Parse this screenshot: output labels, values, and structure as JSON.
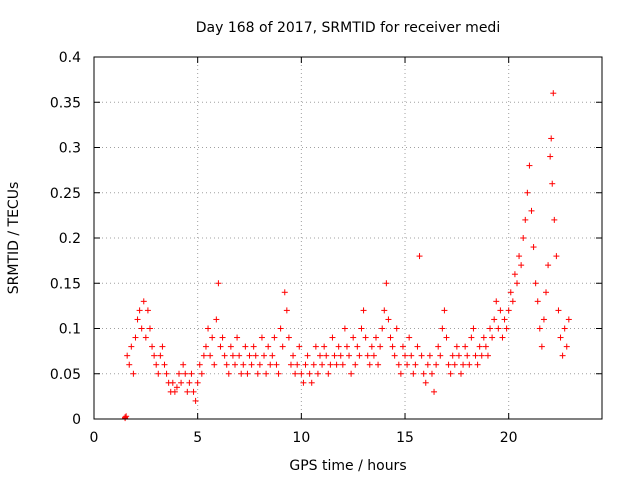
{
  "chart_data": {
    "type": "scatter",
    "title": "Day 168 of 2017, SRMTID for receiver medi",
    "xlabel": "GPS time / hours",
    "ylabel": "SRMTID / TECUs",
    "xlim": [
      0,
      24.5
    ],
    "ylim": [
      0,
      0.4
    ],
    "grid": true,
    "marker": "+",
    "color": "#ff0000",
    "x_ticks": [
      0,
      5,
      10,
      15,
      20
    ],
    "y_ticks": [
      0,
      0.05,
      0.1,
      0.15,
      0.2,
      0.25,
      0.3,
      0.35,
      0.4
    ],
    "x_tick_labels": [
      "0",
      "5",
      "10",
      "15",
      "20"
    ],
    "y_tick_labels": [
      "0",
      "0.05",
      "0.1",
      "0.15",
      "0.2",
      "0.25",
      "0.3",
      "0.35",
      "0.4"
    ],
    "series": [
      {
        "name": "SRMTID",
        "points": [
          [
            1.5,
            0.001
          ],
          [
            1.5,
            0.002
          ],
          [
            1.55,
            0.003
          ],
          [
            1.6,
            0.07
          ],
          [
            1.7,
            0.06
          ],
          [
            1.8,
            0.08
          ],
          [
            1.9,
            0.05
          ],
          [
            2.0,
            0.09
          ],
          [
            2.1,
            0.11
          ],
          [
            2.2,
            0.12
          ],
          [
            2.3,
            0.1
          ],
          [
            2.4,
            0.13
          ],
          [
            2.5,
            0.09
          ],
          [
            2.6,
            0.12
          ],
          [
            2.7,
            0.1
          ],
          [
            2.8,
            0.08
          ],
          [
            2.9,
            0.07
          ],
          [
            3.0,
            0.06
          ],
          [
            3.1,
            0.05
          ],
          [
            3.2,
            0.07
          ],
          [
            3.3,
            0.08
          ],
          [
            3.4,
            0.06
          ],
          [
            3.5,
            0.05
          ],
          [
            3.6,
            0.04
          ],
          [
            3.7,
            0.03
          ],
          [
            3.8,
            0.04
          ],
          [
            3.9,
            0.03
          ],
          [
            4.0,
            0.035
          ],
          [
            4.1,
            0.05
          ],
          [
            4.2,
            0.04
          ],
          [
            4.3,
            0.06
          ],
          [
            4.4,
            0.05
          ],
          [
            4.5,
            0.03
          ],
          [
            4.6,
            0.04
          ],
          [
            4.7,
            0.05
          ],
          [
            4.8,
            0.03
          ],
          [
            4.9,
            0.02
          ],
          [
            5.0,
            0.04
          ],
          [
            5.1,
            0.06
          ],
          [
            5.2,
            0.05
          ],
          [
            5.3,
            0.07
          ],
          [
            5.4,
            0.08
          ],
          [
            5.5,
            0.1
          ],
          [
            5.6,
            0.07
          ],
          [
            5.7,
            0.09
          ],
          [
            5.8,
            0.06
          ],
          [
            5.9,
            0.11
          ],
          [
            6.0,
            0.15
          ],
          [
            6.1,
            0.08
          ],
          [
            6.2,
            0.09
          ],
          [
            6.3,
            0.07
          ],
          [
            6.4,
            0.06
          ],
          [
            6.5,
            0.05
          ],
          [
            6.6,
            0.08
          ],
          [
            6.7,
            0.07
          ],
          [
            6.8,
            0.06
          ],
          [
            6.9,
            0.09
          ],
          [
            7.0,
            0.07
          ],
          [
            7.1,
            0.05
          ],
          [
            7.2,
            0.06
          ],
          [
            7.3,
            0.08
          ],
          [
            7.4,
            0.05
          ],
          [
            7.5,
            0.07
          ],
          [
            7.6,
            0.06
          ],
          [
            7.7,
            0.08
          ],
          [
            7.8,
            0.07
          ],
          [
            7.9,
            0.05
          ],
          [
            8.0,
            0.06
          ],
          [
            8.1,
            0.09
          ],
          [
            8.2,
            0.07
          ],
          [
            8.3,
            0.05
          ],
          [
            8.4,
            0.08
          ],
          [
            8.5,
            0.06
          ],
          [
            8.6,
            0.07
          ],
          [
            8.7,
            0.09
          ],
          [
            8.8,
            0.06
          ],
          [
            8.9,
            0.05
          ],
          [
            9.0,
            0.1
          ],
          [
            9.1,
            0.08
          ],
          [
            9.2,
            0.14
          ],
          [
            9.3,
            0.12
          ],
          [
            9.4,
            0.09
          ],
          [
            9.5,
            0.06
          ],
          [
            9.6,
            0.07
          ],
          [
            9.7,
            0.05
          ],
          [
            9.8,
            0.06
          ],
          [
            9.9,
            0.08
          ],
          [
            10.0,
            0.05
          ],
          [
            10.1,
            0.04
          ],
          [
            10.2,
            0.06
          ],
          [
            10.3,
            0.07
          ],
          [
            10.4,
            0.05
          ],
          [
            10.5,
            0.04
          ],
          [
            10.6,
            0.06
          ],
          [
            10.7,
            0.08
          ],
          [
            10.8,
            0.05
          ],
          [
            10.9,
            0.07
          ],
          [
            11.0,
            0.06
          ],
          [
            11.1,
            0.08
          ],
          [
            11.2,
            0.07
          ],
          [
            11.3,
            0.05
          ],
          [
            11.4,
            0.06
          ],
          [
            11.5,
            0.09
          ],
          [
            11.6,
            0.07
          ],
          [
            11.7,
            0.06
          ],
          [
            11.8,
            0.08
          ],
          [
            11.9,
            0.07
          ],
          [
            12.0,
            0.06
          ],
          [
            12.1,
            0.1
          ],
          [
            12.2,
            0.08
          ],
          [
            12.3,
            0.07
          ],
          [
            12.4,
            0.05
          ],
          [
            12.5,
            0.09
          ],
          [
            12.6,
            0.06
          ],
          [
            12.7,
            0.08
          ],
          [
            12.8,
            0.07
          ],
          [
            12.9,
            0.1
          ],
          [
            13.0,
            0.12
          ],
          [
            13.1,
            0.09
          ],
          [
            13.2,
            0.07
          ],
          [
            13.3,
            0.06
          ],
          [
            13.4,
            0.08
          ],
          [
            13.5,
            0.07
          ],
          [
            13.6,
            0.09
          ],
          [
            13.7,
            0.06
          ],
          [
            13.8,
            0.08
          ],
          [
            13.9,
            0.1
          ],
          [
            14.0,
            0.12
          ],
          [
            14.1,
            0.15
          ],
          [
            14.2,
            0.11
          ],
          [
            14.3,
            0.09
          ],
          [
            14.4,
            0.08
          ],
          [
            14.5,
            0.07
          ],
          [
            14.6,
            0.1
          ],
          [
            14.7,
            0.06
          ],
          [
            14.8,
            0.05
          ],
          [
            14.9,
            0.08
          ],
          [
            15.0,
            0.07
          ],
          [
            15.1,
            0.06
          ],
          [
            15.2,
            0.09
          ],
          [
            15.3,
            0.07
          ],
          [
            15.4,
            0.05
          ],
          [
            15.5,
            0.06
          ],
          [
            15.6,
            0.08
          ],
          [
            15.7,
            0.18
          ],
          [
            15.8,
            0.07
          ],
          [
            15.9,
            0.05
          ],
          [
            16.0,
            0.04
          ],
          [
            16.1,
            0.06
          ],
          [
            16.2,
            0.07
          ],
          [
            16.3,
            0.05
          ],
          [
            16.4,
            0.03
          ],
          [
            16.5,
            0.06
          ],
          [
            16.6,
            0.08
          ],
          [
            16.7,
            0.07
          ],
          [
            16.8,
            0.1
          ],
          [
            16.9,
            0.12
          ],
          [
            17.0,
            0.09
          ],
          [
            17.1,
            0.06
          ],
          [
            17.2,
            0.05
          ],
          [
            17.3,
            0.07
          ],
          [
            17.4,
            0.06
          ],
          [
            17.5,
            0.08
          ],
          [
            17.6,
            0.07
          ],
          [
            17.7,
            0.05
          ],
          [
            17.8,
            0.06
          ],
          [
            17.9,
            0.08
          ],
          [
            18.0,
            0.07
          ],
          [
            18.1,
            0.06
          ],
          [
            18.2,
            0.09
          ],
          [
            18.3,
            0.1
          ],
          [
            18.4,
            0.07
          ],
          [
            18.5,
            0.06
          ],
          [
            18.6,
            0.08
          ],
          [
            18.7,
            0.07
          ],
          [
            18.8,
            0.09
          ],
          [
            18.9,
            0.08
          ],
          [
            19.0,
            0.07
          ],
          [
            19.1,
            0.1
          ],
          [
            19.2,
            0.09
          ],
          [
            19.3,
            0.11
          ],
          [
            19.4,
            0.13
          ],
          [
            19.5,
            0.1
          ],
          [
            19.6,
            0.12
          ],
          [
            19.7,
            0.09
          ],
          [
            19.8,
            0.11
          ],
          [
            19.9,
            0.1
          ],
          [
            20.0,
            0.12
          ],
          [
            20.1,
            0.14
          ],
          [
            20.2,
            0.13
          ],
          [
            20.3,
            0.16
          ],
          [
            20.4,
            0.15
          ],
          [
            20.5,
            0.18
          ],
          [
            20.6,
            0.17
          ],
          [
            20.7,
            0.2
          ],
          [
            20.8,
            0.22
          ],
          [
            20.9,
            0.25
          ],
          [
            21.0,
            0.28
          ],
          [
            21.1,
            0.23
          ],
          [
            21.2,
            0.19
          ],
          [
            21.3,
            0.15
          ],
          [
            21.4,
            0.13
          ],
          [
            21.5,
            0.1
          ],
          [
            21.6,
            0.08
          ],
          [
            21.7,
            0.11
          ],
          [
            21.8,
            0.14
          ],
          [
            21.9,
            0.17
          ],
          [
            22.0,
            0.29
          ],
          [
            22.05,
            0.31
          ],
          [
            22.1,
            0.26
          ],
          [
            22.15,
            0.36
          ],
          [
            22.2,
            0.22
          ],
          [
            22.3,
            0.18
          ],
          [
            22.4,
            0.12
          ],
          [
            22.5,
            0.09
          ],
          [
            22.6,
            0.07
          ],
          [
            22.7,
            0.1
          ],
          [
            22.8,
            0.08
          ],
          [
            22.9,
            0.11
          ]
        ]
      }
    ]
  }
}
